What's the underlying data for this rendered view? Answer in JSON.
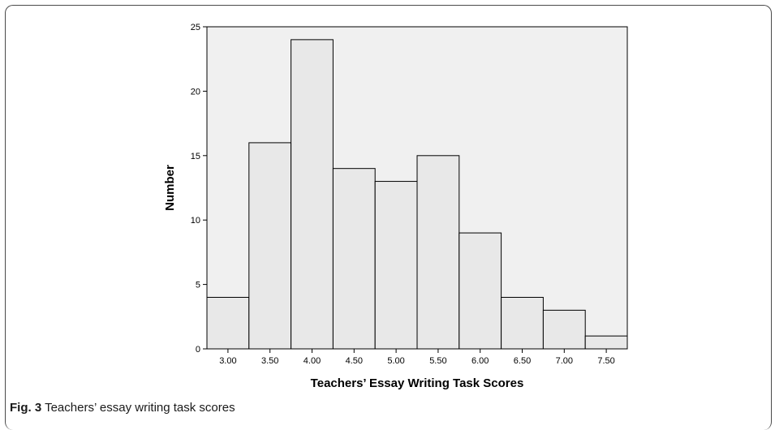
{
  "figure": {
    "caption_label": "Fig. 3",
    "caption_text": "Teachers’ essay writing task scores"
  },
  "colors": {
    "plot_background": "#f0f0f0",
    "bar_fill": "#e8e8e8",
    "bar_stroke": "#000000"
  },
  "chart_data": {
    "type": "bar",
    "title": "",
    "xlabel": "Teachers’ Essay Writing Task Scores",
    "ylabel": "Number",
    "categories": [
      "3.00",
      "3.50",
      "4.00",
      "4.50",
      "5.00",
      "5.50",
      "6.00",
      "6.50",
      "7.00",
      "7.50"
    ],
    "values": [
      4,
      16,
      24,
      14,
      13,
      15,
      9,
      4,
      3,
      1
    ],
    "ylim": [
      0,
      25
    ],
    "yticks": [
      0,
      5,
      10,
      15,
      20,
      25
    ],
    "grid": false,
    "legend": "none"
  }
}
